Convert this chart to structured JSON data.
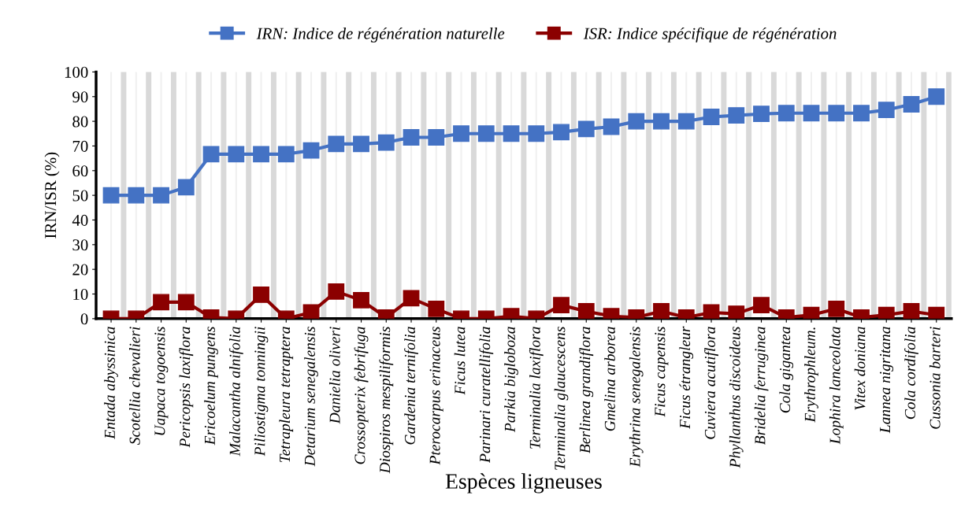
{
  "chart_data": {
    "type": "line",
    "xlabel": "Espèces ligneuses",
    "ylabel": "IRN/ISR (%)",
    "categories": [
      "Entada abyssinica",
      "Scotellia chevalieri",
      "Uapaca togoensis",
      "Pericopsis laxiflora",
      "Ericoelum pungens",
      "Malacantha alnifolia",
      "Piliostigma tonningii",
      "Tetrapleura tetraptera",
      "Detarium senegalensis",
      "Danielia oliveri",
      "Crossopterix febrifuga",
      "Diospiros mespiliformis",
      "Gardenia ternifolia",
      "Pterocarpus erinaceus",
      "Ficus lutea",
      "Parinari curatellifolia",
      "Parkia bigloboza",
      "Terminalia laxiflora",
      "Terminalia glaucescens",
      "Berlinea grandiflora",
      "Gmelina arborea",
      "Erythrina senegalensis",
      "Ficus capensis",
      "Ficus étrangleur",
      "Cuviera acutiflora",
      "Phyllanthus discoideus",
      "Bridelia ferruginea",
      "Cola gigantea",
      "Erythrophleum.",
      "Lophira lanceolata",
      "Vitex doniana",
      "Lannea nigritana",
      "Cola cordifolia",
      "Cussonia barteri"
    ],
    "series": [
      {
        "name": "IRN: Indice de régénération naturelle",
        "color": "#4472c4",
        "values": [
          50,
          50,
          50,
          53.3,
          66.7,
          66.7,
          66.7,
          66.7,
          68.2,
          70.8,
          70.8,
          71.4,
          73.5,
          73.5,
          75,
          75,
          75,
          75,
          75.6,
          76.9,
          77.8,
          80,
          80,
          80,
          81.8,
          82.4,
          83,
          83.3,
          83.3,
          83.3,
          83.3,
          84.6,
          86.9,
          90
        ]
      },
      {
        "name": "ISR: Indice spécifique de régénération",
        "color": "#8b0000",
        "values": [
          0,
          0,
          6.7,
          6.7,
          0.5,
          0,
          9.7,
          0,
          2.5,
          11,
          7.5,
          0.5,
          8.3,
          4,
          0,
          0,
          1,
          0,
          5.5,
          3,
          1,
          0.5,
          3,
          0.5,
          2.5,
          2,
          5.5,
          0.5,
          1.5,
          4,
          0.5,
          1.5,
          3,
          1.5
        ]
      }
    ],
    "ylim": [
      0,
      100
    ],
    "yticks": [
      0,
      10,
      20,
      30,
      40,
      50,
      60,
      70,
      80,
      90,
      100
    ],
    "grid": "x",
    "legend": "top",
    "marker": "square",
    "line_style": "solid"
  }
}
